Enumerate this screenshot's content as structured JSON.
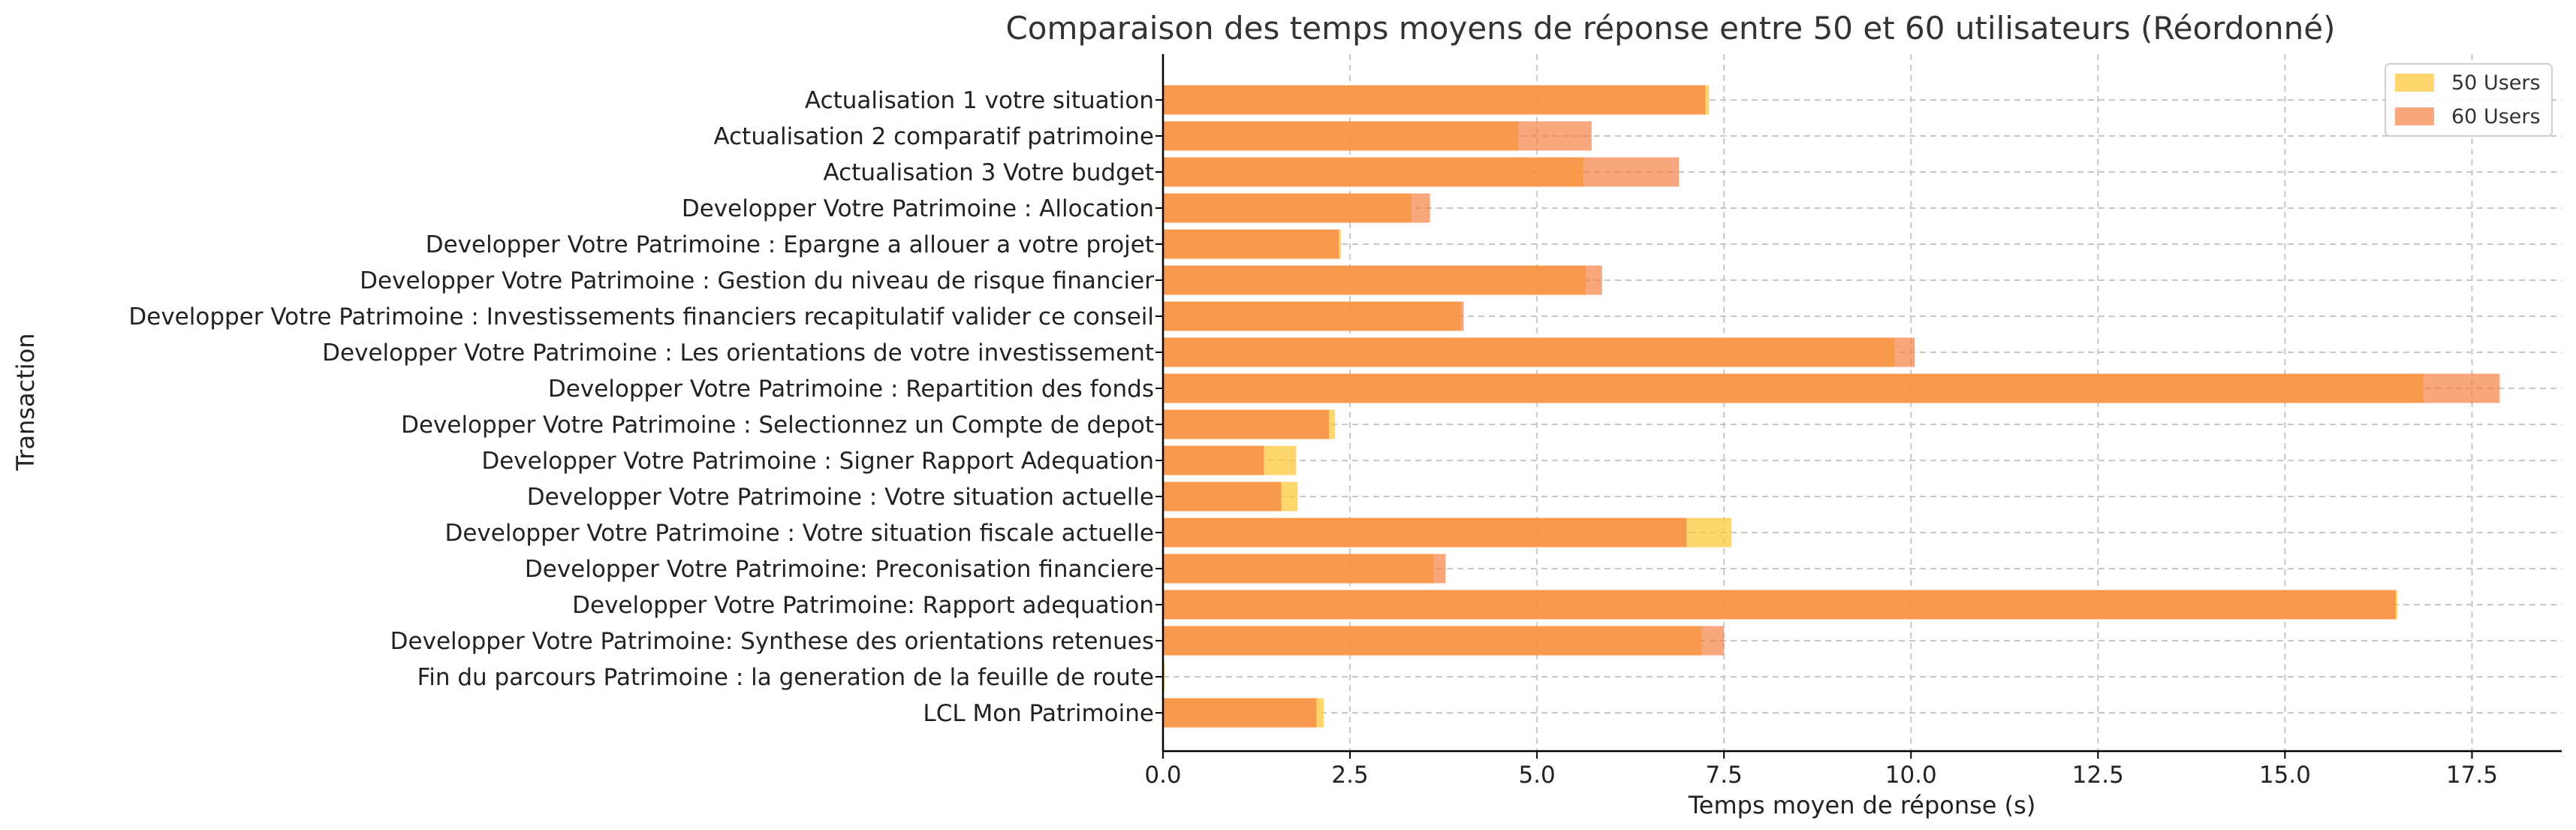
{
  "chart_data": {
    "type": "bar",
    "orientation": "horizontal",
    "title": "Comparaison des temps moyens de réponse entre 50 et 60 utilisateurs (Réordonné)",
    "xlabel": "Temps moyen de réponse (s)",
    "ylabel": "Transaction",
    "xlim": [
      0,
      18.7
    ],
    "xticks": [
      "0.0",
      "2.5",
      "5.0",
      "7.5",
      "10.0",
      "12.5",
      "15.0",
      "17.5"
    ],
    "grid": true,
    "legend_position": "top-right",
    "categories": [
      "Actualisation 1 votre situation",
      "Actualisation 2 comparatif patrimoine",
      "Actualisation 3 Votre budget",
      "Developper Votre Patrimoine : Allocation",
      "Developper Votre Patrimoine : Epargne a allouer a votre projet",
      "Developper Votre Patrimoine : Gestion du niveau de risque financier",
      "Developper Votre Patrimoine : Investissements financiers recapitulatif valider ce conseil",
      "Developper Votre Patrimoine : Les orientations de votre investissement",
      "Developper Votre Patrimoine : Repartition des fonds",
      "Developper Votre Patrimoine : Selectionnez un Compte de depot",
      "Developper Votre Patrimoine : Signer Rapport Adequation",
      "Developper Votre Patrimoine : Votre situation actuelle",
      "Developper Votre Patrimoine : Votre situation fiscale actuelle",
      "Developper Votre Patrimoine: Preconisation financiere",
      "Developper Votre Patrimoine: Rapport adequation",
      "Developper Votre Patrimoine: Synthese des orientations retenues",
      "Fin du parcours Patrimoine : la generation de la feuille de route",
      "LCL Mon Patrimoine"
    ],
    "series": [
      {
        "name": "50 Users",
        "color": "#fcc93e",
        "opacity": 0.75,
        "values": [
          7.3,
          4.75,
          5.62,
          3.32,
          2.38,
          5.65,
          3.98,
          9.78,
          16.85,
          2.3,
          1.78,
          1.8,
          7.6,
          3.62,
          16.5,
          7.2,
          0.02,
          2.15
        ]
      },
      {
        "name": "60 Users",
        "color": "#f47e3e",
        "opacity": 0.68,
        "values": [
          7.25,
          5.73,
          6.9,
          3.57,
          2.35,
          5.87,
          4.02,
          10.05,
          17.87,
          2.22,
          1.35,
          1.58,
          7.0,
          3.78,
          16.48,
          7.5,
          0.0,
          2.05
        ]
      }
    ]
  }
}
